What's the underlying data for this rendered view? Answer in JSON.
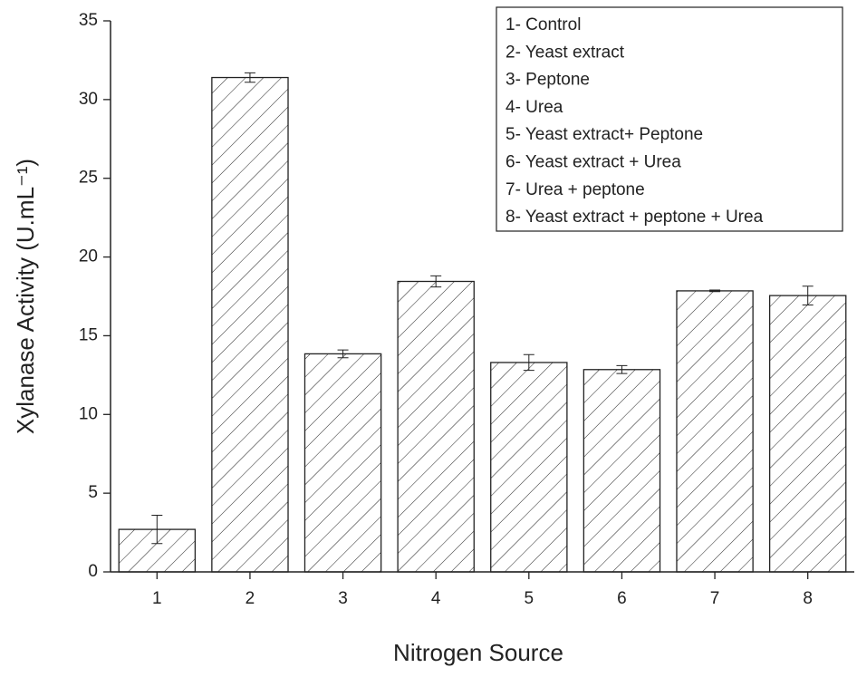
{
  "chart_data": {
    "type": "bar",
    "x": [
      1,
      2,
      3,
      4,
      5,
      6,
      7,
      8
    ],
    "values": [
      2.7,
      31.4,
      13.85,
      18.45,
      13.3,
      12.85,
      17.85,
      17.55
    ],
    "errors": [
      0.9,
      0.3,
      0.25,
      0.35,
      0.5,
      0.25,
      0.05,
      0.6
    ],
    "xlim": [
      0.5,
      8.5
    ],
    "xticks": [
      1,
      2,
      3,
      4,
      5,
      6,
      7,
      8
    ],
    "ylim": [
      0,
      35
    ],
    "yticks": [
      0,
      5,
      10,
      15,
      20,
      25,
      30,
      35
    ],
    "xlabel": "Nitrogen Source",
    "ylabel": "Xylanase Activity (U.mL⁻¹)",
    "color": "#222222",
    "annotations": [
      "1- Control",
      "2- Yeast extract",
      "3- Peptone",
      "4- Urea",
      "5- Yeast extract+ Peptone",
      "6- Yeast extract + Urea",
      "7- Urea + peptone",
      "8- Yeast extract + peptone + Urea"
    ]
  }
}
